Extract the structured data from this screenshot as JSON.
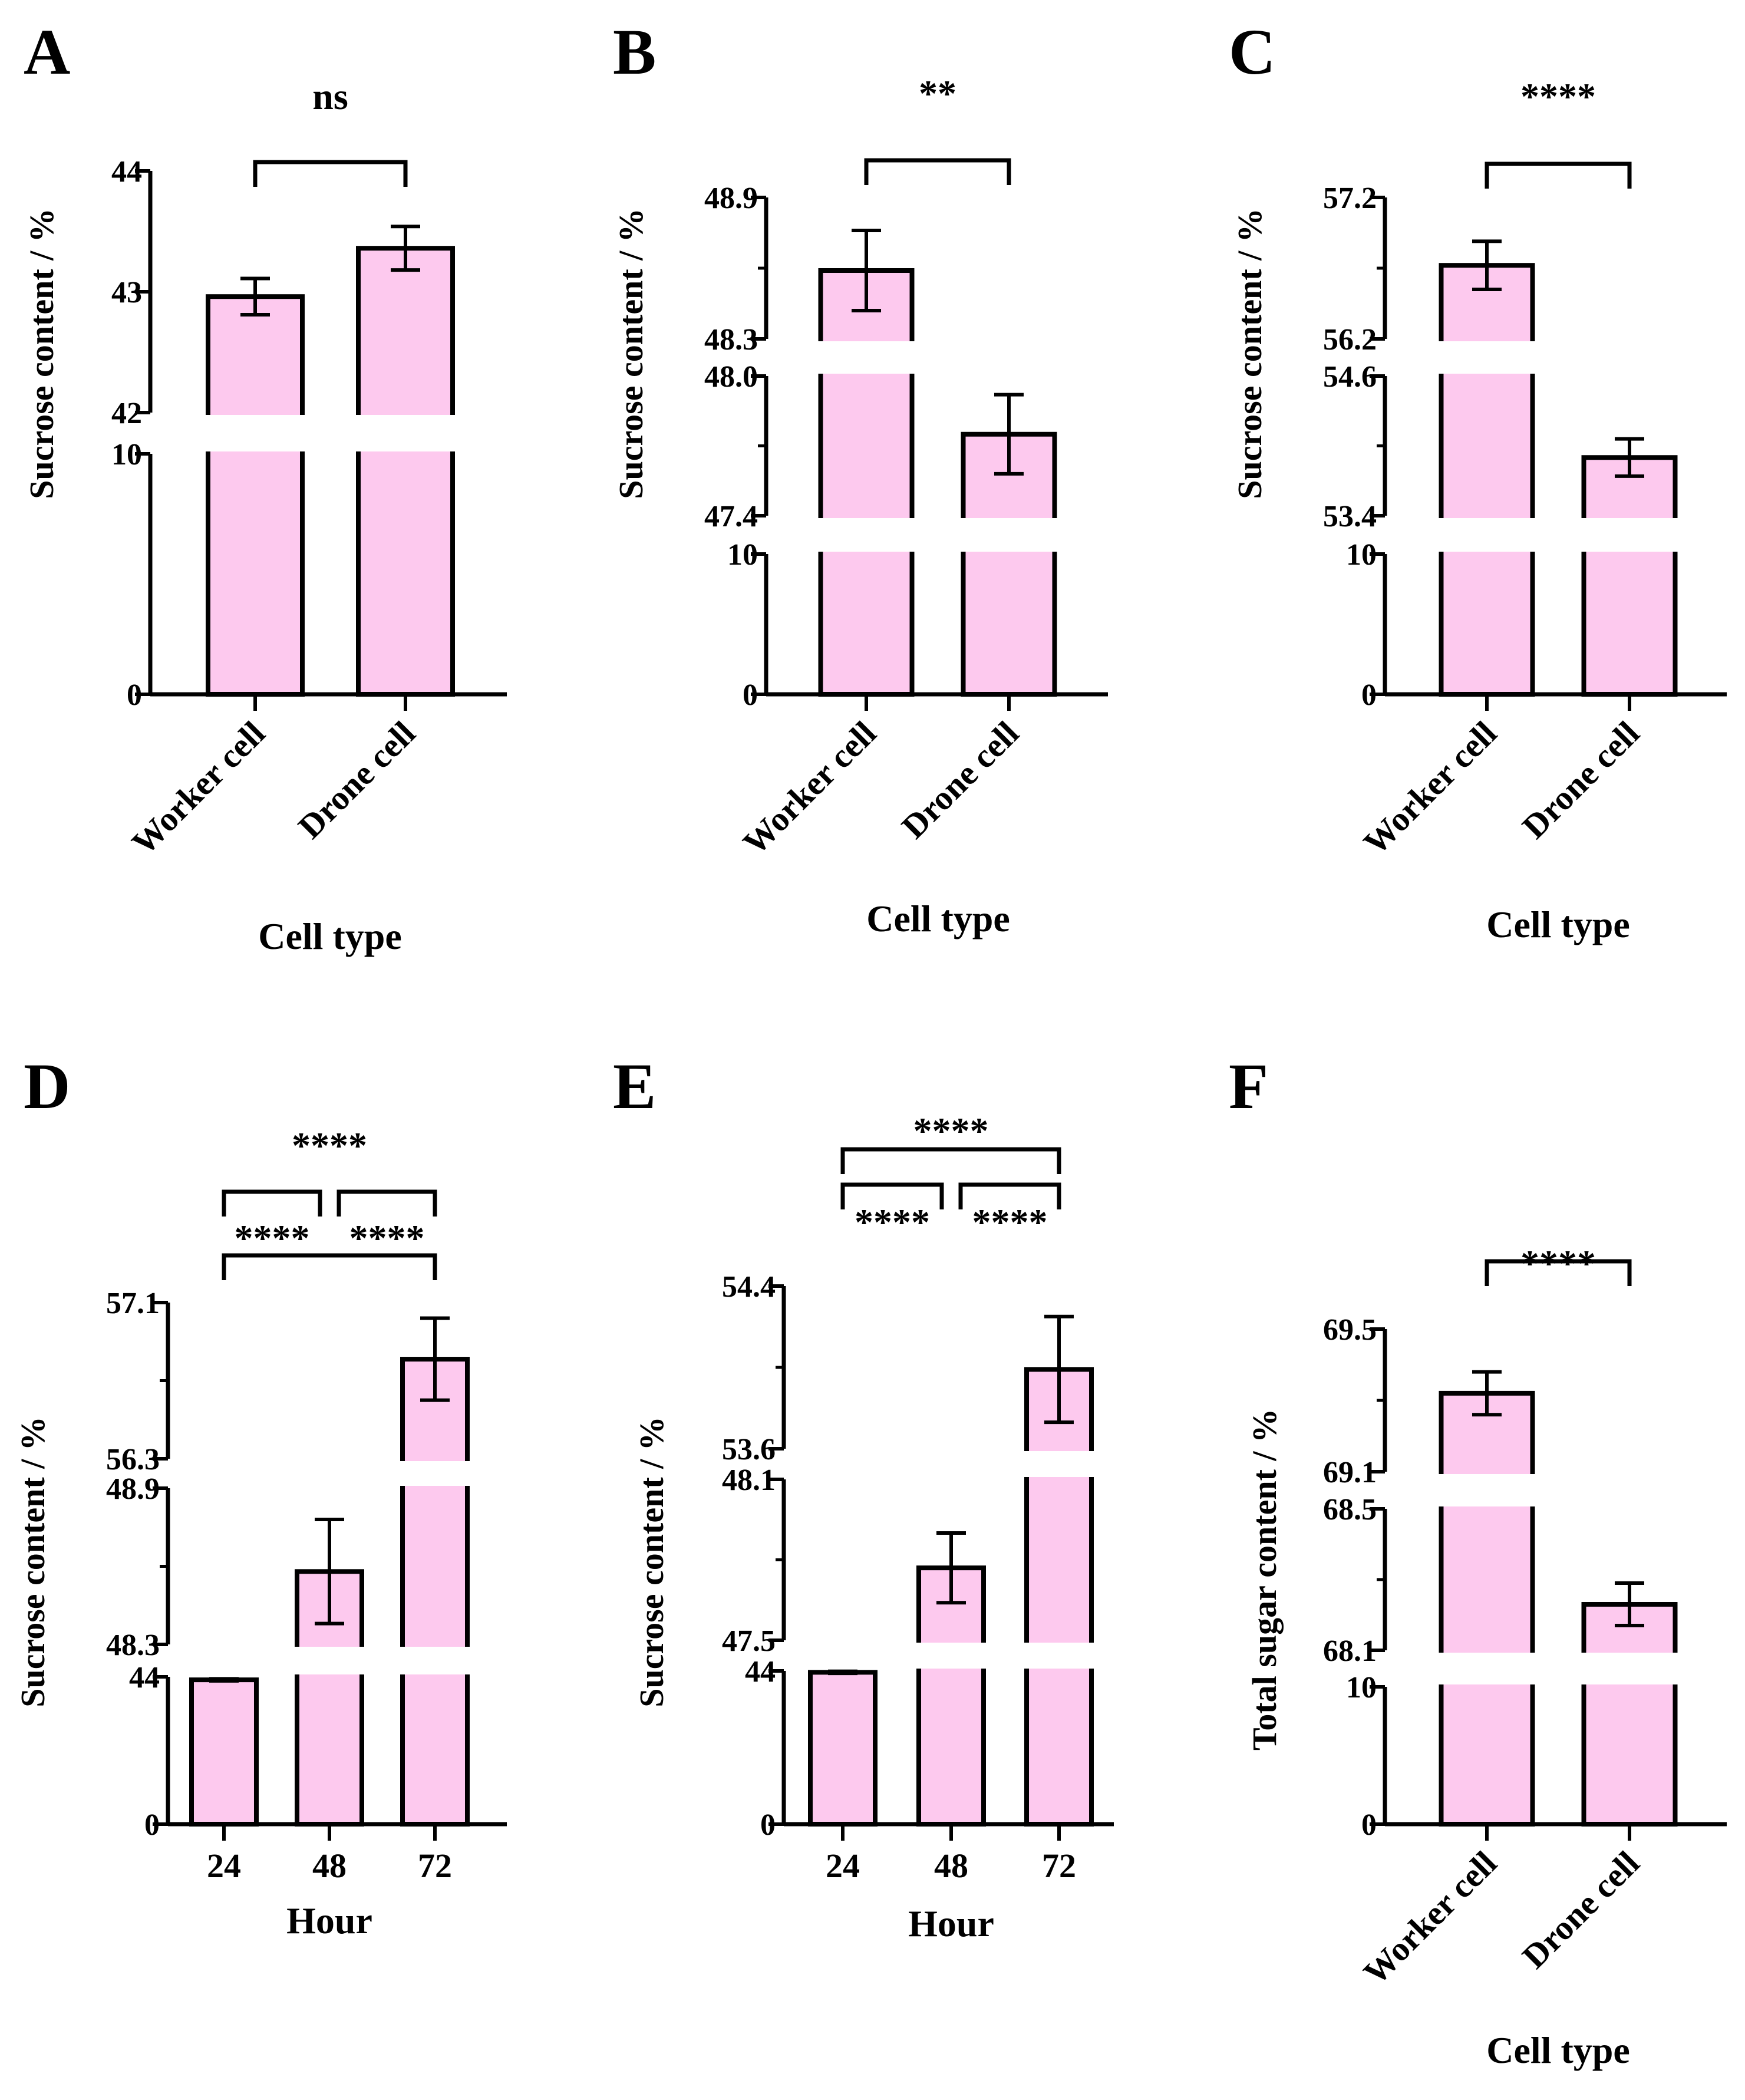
{
  "colors": {
    "bar_fill": "#FDC9EE",
    "stroke": "#000000",
    "background": "#FFFFFF"
  },
  "chart_data": [
    {
      "panel": "A",
      "type": "bar",
      "axis_break": true,
      "categories": [
        "Worker cell",
        "Drone cell"
      ],
      "values": [
        42.96,
        43.36
      ],
      "errors": [
        0.15,
        0.18
      ],
      "xlabel": "Cell type",
      "ylabel": "Sucrose content / %",
      "yticks": [
        0,
        10,
        42,
        43,
        44
      ],
      "comparisons": [
        {
          "from": 0,
          "to": 1,
          "label": "ns"
        }
      ]
    },
    {
      "panel": "B",
      "type": "bar",
      "axis_break": true,
      "categories": [
        "Worker cell",
        "Drone cell"
      ],
      "values": [
        48.59,
        47.75
      ],
      "errors": [
        0.17,
        0.17
      ],
      "xlabel": "Cell type",
      "ylabel": "Sucrose content / %",
      "yticks": [
        0,
        10,
        47.4,
        48.0,
        48.3,
        48.9
      ],
      "ytick_labels": [
        "0",
        "10",
        "47.4",
        "48.0",
        "48.3",
        "48.9"
      ],
      "comparisons": [
        {
          "from": 0,
          "to": 1,
          "label": "**"
        }
      ]
    },
    {
      "panel": "C",
      "type": "bar",
      "axis_break": true,
      "categories": [
        "Worker cell",
        "Drone cell"
      ],
      "values": [
        56.72,
        53.9
      ],
      "errors": [
        0.17,
        0.16
      ],
      "xlabel": "Cell type",
      "ylabel": "Sucrose content / %",
      "yticks": [
        0,
        10,
        53.4,
        54.6,
        56.2,
        57.2
      ],
      "ytick_labels": [
        "0",
        "10",
        "53.4",
        "54.6",
        "56.2",
        "57.2"
      ],
      "comparisons": [
        {
          "from": 0,
          "to": 1,
          "label": "****"
        }
      ]
    },
    {
      "panel": "D",
      "type": "bar",
      "axis_break": true,
      "categories": [
        "24",
        "48",
        "72"
      ],
      "values": [
        43.1,
        48.58,
        56.81
      ],
      "errors": [
        0.3,
        0.2,
        0.21
      ],
      "xlabel": "Hour",
      "ylabel": "Sucrose content / %",
      "yticks": [
        0,
        44,
        48.3,
        48.9,
        56.3,
        57.1
      ],
      "comparisons": [
        {
          "from": 0,
          "to": 2,
          "label": "****"
        },
        {
          "from": 0,
          "to": 1,
          "label": "****"
        },
        {
          "from": 1,
          "to": 2,
          "label": "****"
        }
      ]
    },
    {
      "panel": "E",
      "type": "bar",
      "axis_break": true,
      "categories": [
        "24",
        "48",
        "72"
      ],
      "values": [
        43.6,
        47.77,
        53.99
      ],
      "errors": [
        0.3,
        0.13,
        0.26
      ],
      "xlabel": "Hour",
      "ylabel": "Sucrose content / %",
      "yticks": [
        0,
        44,
        47.5,
        48.1,
        53.6,
        54.4
      ],
      "comparisons": [
        {
          "from": 0,
          "to": 2,
          "label": "****"
        },
        {
          "from": 0,
          "to": 1,
          "label": "****"
        },
        {
          "from": 1,
          "to": 2,
          "label": "****"
        }
      ]
    },
    {
      "panel": "F",
      "type": "bar",
      "axis_break": true,
      "categories": [
        "Worker cell",
        "Drone cell"
      ],
      "values": [
        69.32,
        68.23
      ],
      "errors": [
        0.06,
        0.06
      ],
      "xlabel": "Cell type",
      "ylabel": "Total sugar content / %",
      "yticks": [
        0,
        10,
        68.1,
        68.5,
        69.1,
        69.5
      ],
      "comparisons": [
        {
          "from": 0,
          "to": 1,
          "label": "****"
        }
      ]
    }
  ]
}
